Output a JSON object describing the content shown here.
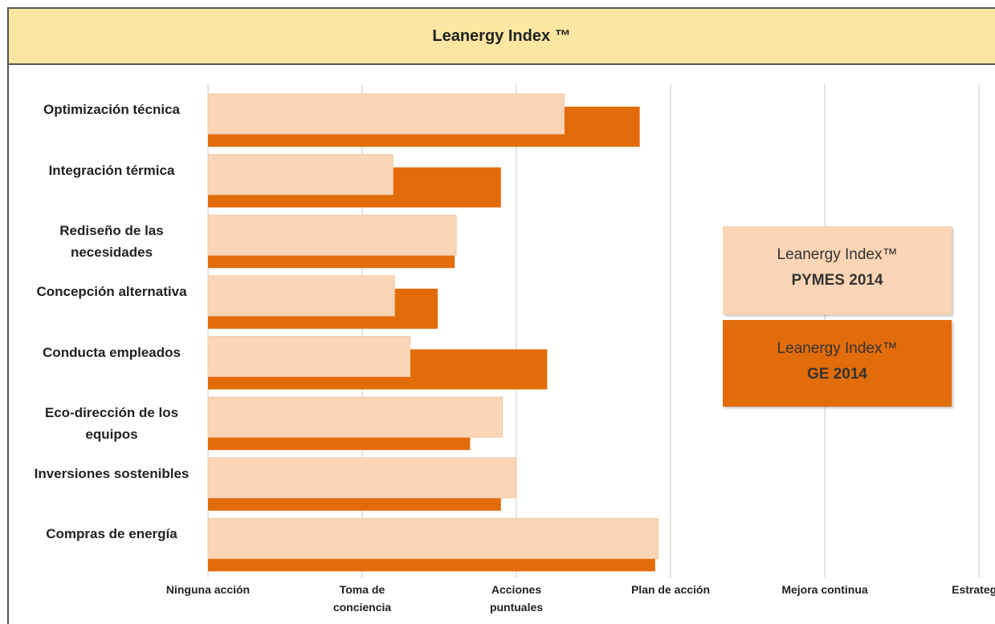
{
  "chart_data": {
    "type": "bar",
    "orientation": "horizontal",
    "title": "Leanergy Index ™",
    "categories": [
      "Optimización técnica",
      "Integración térmica",
      "Rediseño de las necesidades",
      "Concepción alternativa",
      "Conducta empleados",
      "Eco-dirección de los equipos",
      "Inversiones sostenibles",
      "Compras de energía"
    ],
    "series": [
      {
        "name": "PYMES 2014",
        "label": "Leanergy Index™",
        "color": "#fbd5b5",
        "values": [
          2.31,
          1.2,
          1.61,
          1.21,
          1.31,
          1.91,
          2.0,
          2.92
        ]
      },
      {
        "name": "GE 2014",
        "label": "Leanergy Index™",
        "color": "#e36c0a",
        "values": [
          2.8,
          1.9,
          1.6,
          1.49,
          2.2,
          1.7,
          1.9,
          2.9
        ]
      }
    ],
    "xlim": [
      0,
      5
    ],
    "xticks": [
      {
        "value": 0,
        "label": "Ninguna acción"
      },
      {
        "value": 1,
        "label": "Toma de conciencia"
      },
      {
        "value": 2,
        "label": "Acciones puntuales"
      },
      {
        "value": 3,
        "label": "Plan de acción"
      },
      {
        "value": 4,
        "label": "Mejora continua"
      },
      {
        "value": 5,
        "label": "Estrategia"
      }
    ],
    "grid": true
  }
}
